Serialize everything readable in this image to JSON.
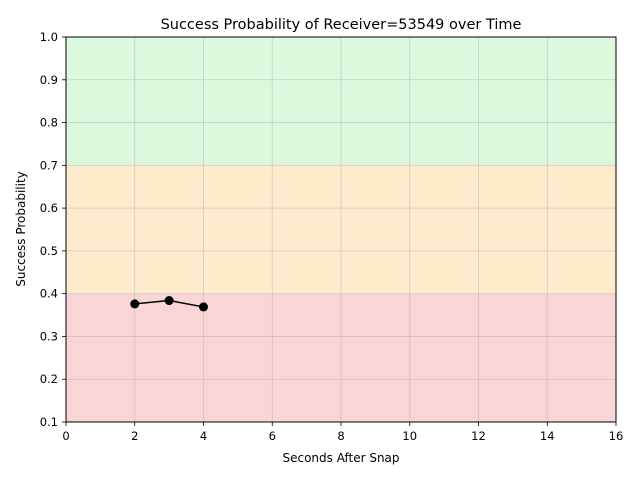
{
  "chart_data": {
    "type": "line",
    "title": "Success Probability of Receiver=53549 over Time",
    "xlabel": "Seconds After Snap",
    "ylabel": "Success Probability",
    "xlim": [
      0,
      16
    ],
    "ylim": [
      0.1,
      1.0
    ],
    "xticks": [
      0,
      2,
      4,
      6,
      8,
      10,
      12,
      14,
      16
    ],
    "yticks": [
      0.1,
      0.2,
      0.3,
      0.4,
      0.5,
      0.6,
      0.7,
      0.8,
      0.9,
      1.0
    ],
    "grid": true,
    "bands": [
      {
        "from": 0.1,
        "to": 0.4,
        "color": "#f9d6d5"
      },
      {
        "from": 0.4,
        "to": 0.7,
        "color": "#feebcc"
      },
      {
        "from": 0.7,
        "to": 1.0,
        "color": "#dcf8dd"
      }
    ],
    "series": [
      {
        "x": [
          2,
          3,
          4
        ],
        "values": [
          0.376,
          0.384,
          0.369
        ],
        "color": "#000000",
        "marker": "circle"
      }
    ]
  }
}
